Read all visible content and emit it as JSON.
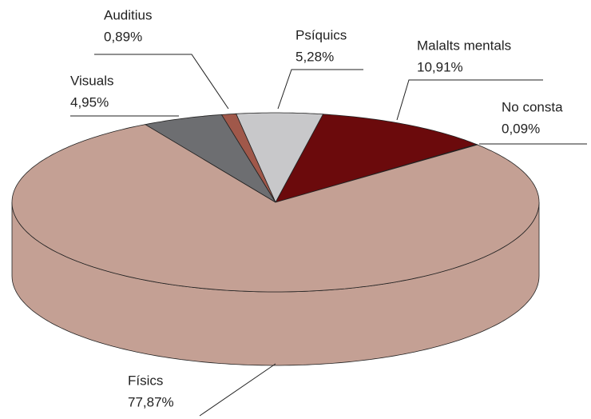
{
  "chart_data": {
    "type": "pie",
    "categories": [
      "No consta",
      "Malalts mentals",
      "Psíquics",
      "Auditius",
      "Visuals",
      "Físics"
    ],
    "values": [
      0.09,
      10.91,
      5.28,
      0.89,
      4.95,
      77.87
    ],
    "value_labels": [
      "0,09%",
      "10,91%",
      "5,28%",
      "0,89%",
      "4,95%",
      "77,87%"
    ],
    "colors": [
      "#3a1a14",
      "#6b0a0c",
      "#c8c8ca",
      "#a0584a",
      "#6d6e71",
      "#c4a094"
    ]
  }
}
